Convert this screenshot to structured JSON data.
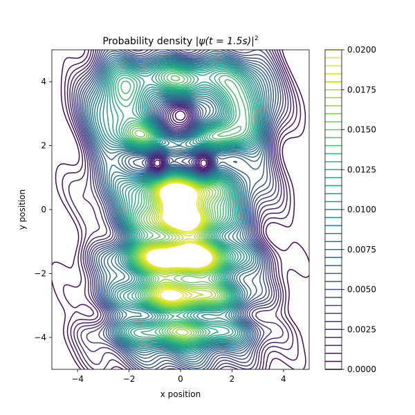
{
  "chart_data": {
    "type": "contour",
    "title_prefix": "Probability density ",
    "title_math": "|ψ(t = 1.5s)|",
    "title_exponent": "2",
    "xlabel": "x position",
    "ylabel": "y position",
    "xlim": [
      -5,
      5
    ],
    "ylim": [
      -5,
      5
    ],
    "xticks": [
      -4,
      -2,
      0,
      2,
      4
    ],
    "yticks": [
      -4,
      -2,
      0,
      2,
      4
    ],
    "xtick_labels": [
      "−4",
      "−2",
      "0",
      "2",
      "4"
    ],
    "ytick_labels": [
      "−4",
      "−2",
      "0",
      "2",
      "4"
    ],
    "colormap": "viridis",
    "levels": {
      "min": 0.0,
      "max": 0.02,
      "step": 0.0005
    },
    "colorbar": {
      "range": [
        0.0,
        0.02
      ],
      "ticks": [
        0.0,
        0.0025,
        0.005,
        0.0075,
        0.01,
        0.0125,
        0.015,
        0.0175,
        0.02
      ],
      "tick_labels": [
        "0.0000",
        "0.0025",
        "0.0050",
        "0.0075",
        "0.0100",
        "0.0125",
        "0.0150",
        "0.0175",
        "0.0200"
      ]
    },
    "features": {
      "zero_density_hole": {
        "x": 0.0,
        "y": 2.95
      },
      "point_minima": [
        {
          "x": -0.9,
          "y": 1.45
        },
        {
          "x": 0.9,
          "y": 1.45
        }
      ],
      "high_density_bands_y": [
        -0.35,
        -1.45,
        -2.75
      ],
      "secondary_peak": {
        "x": 0.0,
        "y": 0.6
      }
    }
  }
}
